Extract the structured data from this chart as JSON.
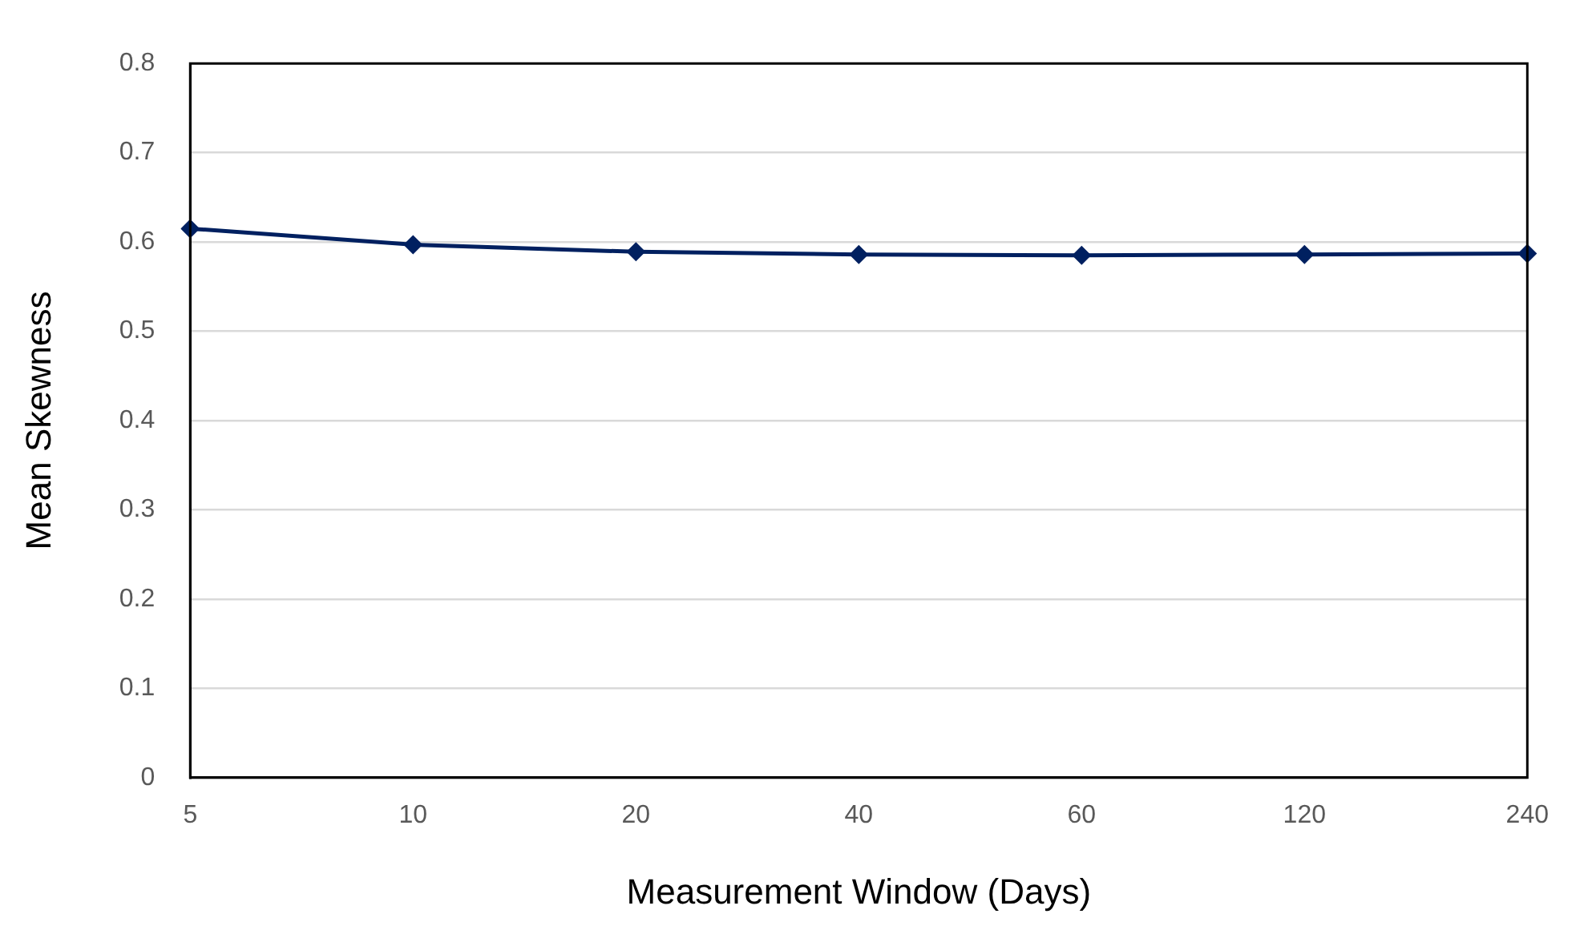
{
  "chart_data": {
    "type": "line",
    "xlabel": "Measurement Window (Days)",
    "ylabel": "Mean Skewness",
    "categories": [
      "5",
      "10",
      "20",
      "40",
      "60",
      "120",
      "240"
    ],
    "series": [
      {
        "color": "#002060",
        "values": [
          0.615,
          0.597,
          0.589,
          0.586,
          0.585,
          0.586,
          0.587
        ]
      }
    ],
    "ylim": [
      0,
      0.8
    ],
    "yticks": [
      0,
      0.1,
      0.2,
      0.3,
      0.4,
      0.5,
      0.6,
      0.7,
      0.8
    ],
    "grid": "y",
    "legend": false,
    "marker": "diamond",
    "line_style": "solid"
  }
}
